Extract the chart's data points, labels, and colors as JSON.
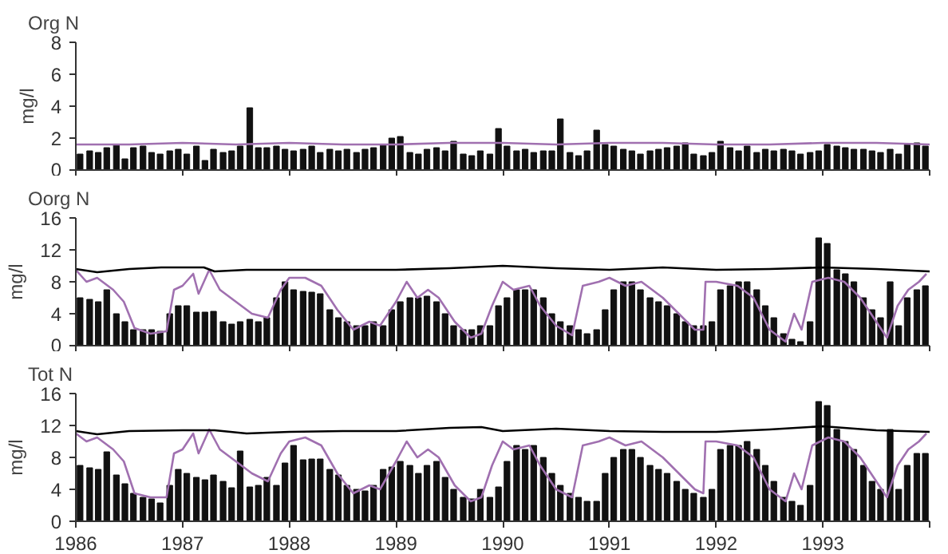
{
  "chart_data": [
    {
      "type": "bar",
      "title": "Org N",
      "ylabel": "mg/l",
      "xlim": [
        1986,
        1994
      ],
      "xticks": [
        {
          "value": 1986,
          "label": null
        },
        {
          "value": 1987,
          "label": null
        },
        {
          "value": 1988,
          "label": null
        },
        {
          "value": 1989,
          "label": null
        },
        {
          "value": 1990,
          "label": null
        },
        {
          "value": 1991,
          "label": null
        },
        {
          "value": 1992,
          "label": null
        },
        {
          "value": 1993,
          "label": null
        },
        {
          "value": 1994,
          "label": null
        }
      ],
      "ylim": [
        0,
        8
      ],
      "yticks": [
        0,
        2,
        4,
        6,
        8
      ],
      "tick_labels": "y",
      "grid": false,
      "x": [
        1986.04,
        1986.13,
        1986.21,
        1986.29,
        1986.38,
        1986.46,
        1986.54,
        1986.63,
        1986.71,
        1986.79,
        1986.88,
        1986.96,
        1987.04,
        1987.13,
        1987.21,
        1987.29,
        1987.38,
        1987.46,
        1987.54,
        1987.63,
        1987.71,
        1987.79,
        1987.88,
        1987.96,
        1988.04,
        1988.13,
        1988.21,
        1988.29,
        1988.38,
        1988.46,
        1988.54,
        1988.63,
        1988.71,
        1988.79,
        1988.88,
        1988.96,
        1989.04,
        1989.13,
        1989.21,
        1989.29,
        1989.38,
        1989.46,
        1989.54,
        1989.63,
        1989.71,
        1989.79,
        1989.88,
        1989.96,
        1990.04,
        1990.13,
        1990.21,
        1990.29,
        1990.38,
        1990.46,
        1990.54,
        1990.63,
        1990.71,
        1990.79,
        1990.88,
        1990.96,
        1991.04,
        1991.13,
        1991.21,
        1991.29,
        1991.38,
        1991.46,
        1991.54,
        1991.63,
        1991.71,
        1991.79,
        1991.88,
        1991.96,
        1992.04,
        1992.13,
        1992.21,
        1992.29,
        1992.38,
        1992.46,
        1992.54,
        1992.63,
        1992.71,
        1992.79,
        1992.88,
        1992.96,
        1993.04,
        1993.13,
        1993.21,
        1993.29,
        1993.38,
        1993.46,
        1993.54,
        1993.63,
        1993.71,
        1993.79,
        1993.88,
        1993.96
      ],
      "series": [
        {
          "color": "#111111",
          "values": [
            1.0,
            1.2,
            1.1,
            1.4,
            1.6,
            0.7,
            1.4,
            1.5,
            1.1,
            1.0,
            1.2,
            1.3,
            1.0,
            1.5,
            0.6,
            1.3,
            1.1,
            1.2,
            1.5,
            3.9,
            1.4,
            1.4,
            1.5,
            1.3,
            1.2,
            1.3,
            1.5,
            1.1,
            1.3,
            1.2,
            1.3,
            1.1,
            1.3,
            1.4,
            1.6,
            2.0,
            2.1,
            1.1,
            1.0,
            1.3,
            1.4,
            1.2,
            1.8,
            1.0,
            0.9,
            1.2,
            1.0,
            2.6,
            1.5,
            1.2,
            1.3,
            1.1,
            1.2,
            1.2,
            3.2,
            1.1,
            0.9,
            1.2,
            2.5,
            1.6,
            1.5,
            1.3,
            1.2,
            1.0,
            1.2,
            1.3,
            1.4,
            1.5,
            1.7,
            1.0,
            0.9,
            1.1,
            1.8,
            1.4,
            1.2,
            1.5,
            1.1,
            1.3,
            1.2,
            1.3,
            1.2,
            1.0,
            1.1,
            1.2,
            1.6,
            1.5,
            1.4,
            1.3,
            1.3,
            1.2,
            1.1,
            1.3,
            1.0,
            1.6,
            1.7,
            1.5
          ]
        },
        {
          "type": "line",
          "color": "#a070b0",
          "x": [
            1986,
            1986.5,
            1987,
            1987.5,
            1988,
            1988.5,
            1989,
            1989.5,
            1990,
            1990.5,
            1991,
            1991.5,
            1992,
            1992.5,
            1993,
            1993.5,
            1994
          ],
          "values": [
            1.6,
            1.6,
            1.7,
            1.6,
            1.7,
            1.6,
            1.6,
            1.7,
            1.7,
            1.6,
            1.7,
            1.7,
            1.6,
            1.6,
            1.7,
            1.7,
            1.6
          ]
        }
      ]
    },
    {
      "type": "bar",
      "title": "Oorg N",
      "ylabel": "mg/l",
      "xlim": [
        1986,
        1994
      ],
      "xticks": [
        {
          "value": 1986,
          "label": null
        },
        {
          "value": 1987,
          "label": null
        },
        {
          "value": 1988,
          "label": null
        },
        {
          "value": 1989,
          "label": null
        },
        {
          "value": 1990,
          "label": null
        },
        {
          "value": 1991,
          "label": null
        },
        {
          "value": 1992,
          "label": null
        },
        {
          "value": 1993,
          "label": null
        },
        {
          "value": 1994,
          "label": null
        }
      ],
      "ylim": [
        0,
        16
      ],
      "yticks": [
        0,
        4,
        8,
        12,
        16
      ],
      "tick_labels": "y",
      "grid": false,
      "x": [
        1986.04,
        1986.13,
        1986.21,
        1986.29,
        1986.38,
        1986.46,
        1986.54,
        1986.63,
        1986.71,
        1986.79,
        1986.88,
        1986.96,
        1987.04,
        1987.13,
        1987.21,
        1987.29,
        1987.38,
        1987.46,
        1987.54,
        1987.63,
        1987.71,
        1987.79,
        1987.88,
        1987.96,
        1988.04,
        1988.13,
        1988.21,
        1988.29,
        1988.38,
        1988.46,
        1988.54,
        1988.63,
        1988.71,
        1988.79,
        1988.88,
        1988.96,
        1989.04,
        1989.13,
        1989.21,
        1989.29,
        1989.38,
        1989.46,
        1989.54,
        1989.63,
        1989.71,
        1989.79,
        1989.88,
        1989.96,
        1990.04,
        1990.13,
        1990.21,
        1990.29,
        1990.38,
        1990.46,
        1990.54,
        1990.63,
        1990.71,
        1990.79,
        1990.88,
        1990.96,
        1991.04,
        1991.13,
        1991.21,
        1991.29,
        1991.38,
        1991.46,
        1991.54,
        1991.63,
        1991.71,
        1991.79,
        1991.88,
        1991.96,
        1992.04,
        1992.13,
        1992.21,
        1992.29,
        1992.38,
        1992.46,
        1992.54,
        1992.63,
        1992.71,
        1992.79,
        1992.88,
        1992.96,
        1993.04,
        1993.13,
        1993.21,
        1993.29,
        1993.38,
        1993.46,
        1993.54,
        1993.63,
        1993.71,
        1993.79,
        1993.88,
        1993.96
      ],
      "series": [
        {
          "color": "#111111",
          "values": [
            6,
            5.8,
            5.5,
            7,
            4,
            3,
            2,
            2,
            2,
            1.8,
            4,
            5,
            5,
            4.2,
            4.2,
            4.3,
            3,
            2.7,
            3,
            3.3,
            3,
            3.5,
            6,
            8,
            7,
            6.8,
            6.7,
            6.5,
            4.5,
            3.5,
            3,
            2.5,
            2.5,
            3,
            2.5,
            4.5,
            5.5,
            6,
            6,
            6.2,
            5.5,
            4,
            2.5,
            2,
            2,
            2.5,
            2.5,
            5,
            6,
            7,
            7,
            7,
            6,
            4,
            3,
            2.5,
            2,
            1.5,
            2,
            4.5,
            7,
            8,
            8,
            7,
            6,
            5.5,
            5,
            4,
            3,
            2.5,
            2.5,
            3,
            7,
            7.5,
            8,
            8,
            7,
            5,
            3.5,
            1.5,
            0.8,
            0.5,
            3,
            13.5,
            12.8,
            9.5,
            9,
            8,
            6,
            4.5,
            3.5,
            8,
            2.5,
            6,
            7,
            7.5
          ]
        },
        {
          "type": "line",
          "color": "#a070b0",
          "x": [
            1986.0,
            1986.1,
            1986.2,
            1986.35,
            1986.45,
            1986.55,
            1986.7,
            1986.85,
            1986.92,
            1987.0,
            1987.1,
            1987.15,
            1987.25,
            1987.35,
            1987.5,
            1987.65,
            1987.8,
            1987.92,
            1988.0,
            1988.15,
            1988.3,
            1988.45,
            1988.6,
            1988.75,
            1988.85,
            1989.0,
            1989.1,
            1989.2,
            1989.3,
            1989.4,
            1989.55,
            1989.7,
            1989.8,
            1989.9,
            1990.0,
            1990.1,
            1990.25,
            1990.35,
            1990.5,
            1990.65,
            1990.75,
            1990.9,
            1991.0,
            1991.15,
            1991.3,
            1991.5,
            1991.65,
            1991.8,
            1991.88,
            1991.9,
            1992.0,
            1992.2,
            1992.35,
            1992.5,
            1992.65,
            1992.73,
            1992.8,
            1992.9,
            1993.05,
            1993.2,
            1993.35,
            1993.5,
            1993.6,
            1993.7,
            1993.8,
            1993.9,
            1993.97
          ],
          "values": [
            9.5,
            8,
            8.5,
            7,
            5.5,
            2.2,
            1.5,
            1.8,
            7,
            7.5,
            9,
            6.5,
            9.5,
            7,
            5.5,
            4,
            3.5,
            7,
            8.5,
            8.5,
            7.5,
            4.5,
            2,
            3,
            2.5,
            5.5,
            8,
            6,
            7,
            6,
            3,
            1,
            1.5,
            5,
            8,
            7,
            7.5,
            5,
            2.5,
            1.3,
            7.5,
            8,
            8.5,
            7.5,
            8,
            6,
            4,
            2,
            2,
            8,
            8,
            7.5,
            6,
            2,
            0.5,
            4,
            2,
            8,
            8.5,
            8,
            6,
            3,
            1,
            5,
            7,
            8,
            9
          ]
        },
        {
          "type": "line",
          "color": "#000000",
          "x": [
            1986,
            1986.2,
            1986.5,
            1986.8,
            1987.2,
            1987.3,
            1987.6,
            1988,
            1989,
            1989.5,
            1990,
            1990.5,
            1991,
            1991.5,
            1992,
            1992.5,
            1993,
            1993.5,
            1994
          ],
          "values": [
            9.6,
            9.2,
            9.6,
            9.8,
            9.8,
            9.3,
            9.5,
            9.5,
            9.5,
            9.7,
            10,
            9.7,
            9.5,
            9.8,
            9.5,
            9.6,
            9.8,
            9.6,
            9.3
          ]
        }
      ]
    },
    {
      "type": "bar",
      "title": "Tot N",
      "ylabel": "mg/l",
      "xlim": [
        1986,
        1994
      ],
      "xticks": [
        {
          "value": 1986,
          "label": "1986"
        },
        {
          "value": 1987,
          "label": "1987"
        },
        {
          "value": 1988,
          "label": "1988"
        },
        {
          "value": 1989,
          "label": "1989"
        },
        {
          "value": 1990,
          "label": "1990"
        },
        {
          "value": 1991,
          "label": "1991"
        },
        {
          "value": 1992,
          "label": "1992"
        },
        {
          "value": 1993,
          "label": "1993"
        },
        {
          "value": 1994,
          "label": null
        }
      ],
      "ylim": [
        0,
        16
      ],
      "yticks": [
        0,
        4,
        8,
        12,
        16
      ],
      "grid": false,
      "x": [
        1986.04,
        1986.13,
        1986.21,
        1986.29,
        1986.38,
        1986.46,
        1986.54,
        1986.63,
        1986.71,
        1986.79,
        1986.88,
        1986.96,
        1987.04,
        1987.13,
        1987.21,
        1987.29,
        1987.38,
        1987.46,
        1987.54,
        1987.63,
        1987.71,
        1987.79,
        1987.88,
        1987.96,
        1988.04,
        1988.13,
        1988.21,
        1988.29,
        1988.38,
        1988.46,
        1988.54,
        1988.63,
        1988.71,
        1988.79,
        1988.88,
        1988.96,
        1989.04,
        1989.13,
        1989.21,
        1989.29,
        1989.38,
        1989.46,
        1989.54,
        1989.63,
        1989.71,
        1989.79,
        1989.88,
        1989.96,
        1990.04,
        1990.13,
        1990.21,
        1990.29,
        1990.38,
        1990.46,
        1990.54,
        1990.63,
        1990.71,
        1990.79,
        1990.88,
        1990.96,
        1991.04,
        1991.13,
        1991.21,
        1991.29,
        1991.38,
        1991.46,
        1991.54,
        1991.63,
        1991.71,
        1991.79,
        1991.88,
        1991.96,
        1992.04,
        1992.13,
        1992.21,
        1992.29,
        1992.38,
        1992.46,
        1992.54,
        1992.63,
        1992.71,
        1992.79,
        1992.88,
        1992.96,
        1993.04,
        1993.13,
        1993.21,
        1993.29,
        1993.38,
        1993.46,
        1993.54,
        1993.63,
        1993.71,
        1993.79,
        1993.88,
        1993.96
      ],
      "series": [
        {
          "color": "#111111",
          "values": [
            7,
            6.7,
            6.5,
            8.7,
            5.8,
            4.7,
            3.5,
            3,
            2.8,
            2.3,
            4.5,
            6.5,
            6,
            5.5,
            5.2,
            5.8,
            5,
            4.2,
            8.8,
            4.3,
            4.5,
            5.5,
            4.5,
            7.3,
            9.5,
            7.7,
            7.8,
            7.8,
            6.5,
            5.8,
            4.5,
            4,
            3.8,
            4.5,
            6.5,
            6.8,
            7.5,
            7,
            6,
            7,
            7.5,
            5.5,
            4,
            3,
            2.8,
            4,
            3,
            4.3,
            7.5,
            9.5,
            9,
            9.5,
            8,
            6,
            4.5,
            3.5,
            3,
            2.5,
            2.5,
            6,
            8,
            9,
            9,
            8,
            7,
            6.5,
            6,
            5,
            4,
            3.5,
            3,
            4,
            9,
            9.5,
            9.5,
            10,
            9,
            7,
            5,
            3,
            2.5,
            2,
            4.5,
            15,
            14.5,
            11.5,
            10,
            9,
            7,
            5,
            4,
            11.5,
            4,
            7,
            8.5,
            8.5
          ]
        },
        {
          "type": "line",
          "color": "#a070b0",
          "x": [
            1986.0,
            1986.1,
            1986.2,
            1986.35,
            1986.45,
            1986.55,
            1986.7,
            1986.85,
            1986.92,
            1987.0,
            1987.1,
            1987.15,
            1987.25,
            1987.35,
            1987.5,
            1987.65,
            1987.8,
            1987.92,
            1988.0,
            1988.15,
            1988.3,
            1988.45,
            1988.6,
            1988.75,
            1988.85,
            1989.0,
            1989.1,
            1989.2,
            1989.3,
            1989.4,
            1989.55,
            1989.7,
            1989.8,
            1989.9,
            1990.0,
            1990.1,
            1990.25,
            1990.35,
            1990.5,
            1990.65,
            1990.75,
            1990.9,
            1991.0,
            1991.15,
            1991.3,
            1991.5,
            1991.65,
            1991.8,
            1991.88,
            1991.9,
            1992.0,
            1992.2,
            1992.35,
            1992.5,
            1992.65,
            1992.73,
            1992.8,
            1992.9,
            1993.05,
            1993.2,
            1993.35,
            1993.5,
            1993.6,
            1993.7,
            1993.8,
            1993.9,
            1993.97
          ],
          "values": [
            11,
            10,
            10.5,
            9,
            7.5,
            3.5,
            3,
            3,
            8.5,
            9,
            11,
            8.5,
            11.5,
            9,
            7.5,
            6,
            5,
            8.5,
            10,
            10.5,
            9.5,
            6,
            3.5,
            4.5,
            4,
            7.5,
            10,
            8,
            9,
            8,
            4.5,
            2.5,
            3,
            7,
            10,
            9,
            9.5,
            7,
            4,
            3,
            9.5,
            10,
            10.5,
            9.5,
            10,
            8,
            6,
            4,
            3.5,
            10,
            10,
            9.5,
            8,
            4,
            2.5,
            6,
            4,
            9.5,
            10.5,
            10,
            8,
            5,
            3,
            7,
            9,
            10,
            11
          ]
        },
        {
          "type": "line",
          "color": "#000000",
          "x": [
            1986,
            1986.2,
            1986.5,
            1987,
            1987.3,
            1987.6,
            1988,
            1988.5,
            1989,
            1989.5,
            1989.8,
            1990,
            1990.5,
            1991,
            1991.5,
            1992,
            1992.5,
            1993,
            1993.5,
            1994
          ],
          "values": [
            11.3,
            10.9,
            11.3,
            11.4,
            11.4,
            11,
            11.2,
            11.3,
            11.3,
            11.7,
            11.8,
            11.3,
            11.6,
            11.3,
            11.2,
            11.2,
            11.5,
            11.9,
            11.4,
            11.2
          ]
        }
      ]
    }
  ]
}
